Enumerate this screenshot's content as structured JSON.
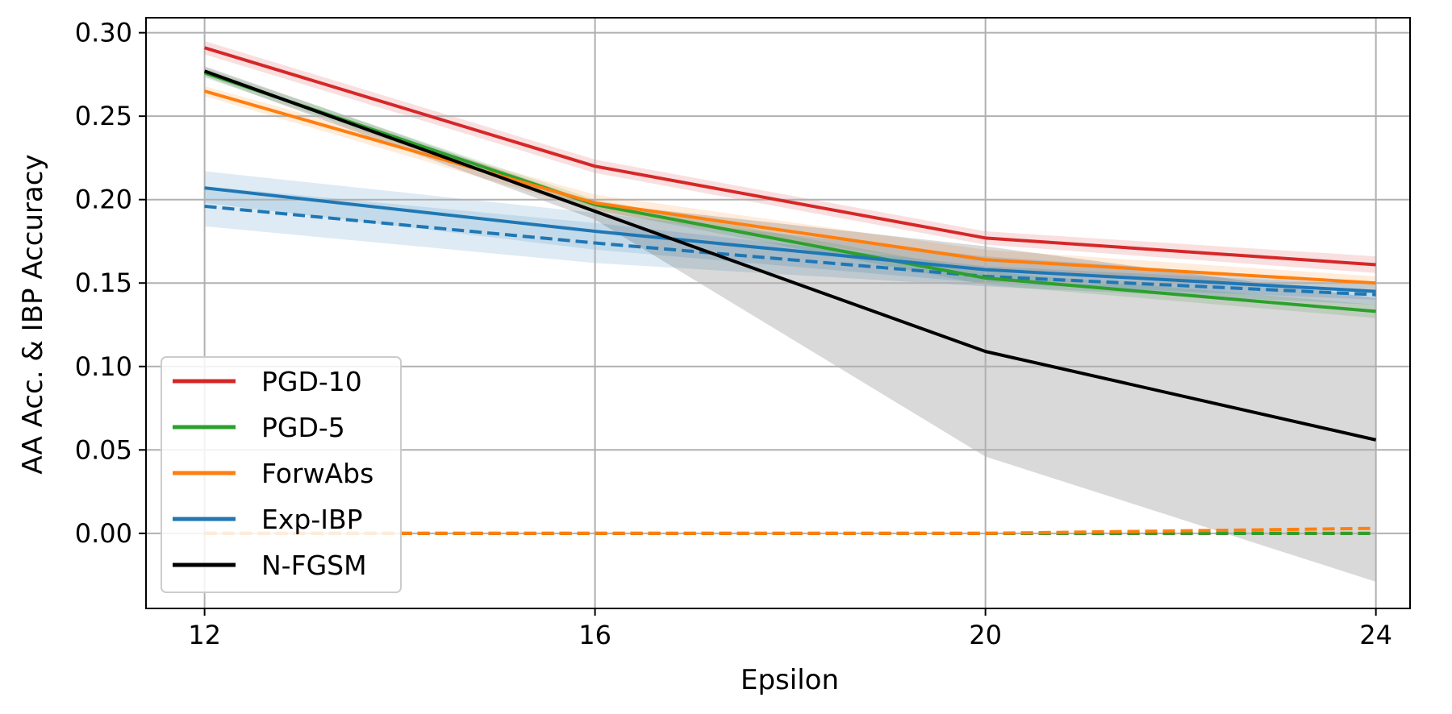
{
  "chart_data": {
    "type": "line",
    "title": "",
    "xlabel": "Epsilon",
    "ylabel": "AA Acc. & IBP Accuracy",
    "x": [
      12,
      16,
      20,
      24
    ],
    "xticks": [
      12,
      16,
      20,
      24
    ],
    "xlim": [
      11.4,
      24.35
    ],
    "ylim": [
      -0.045,
      0.309
    ],
    "yticks": [
      0.0,
      0.05,
      0.1,
      0.15,
      0.2,
      0.25,
      0.3
    ],
    "ytick_labels": [
      "0.00",
      "0.05",
      "0.10",
      "0.15",
      "0.20",
      "0.25",
      "0.30"
    ],
    "grid": true,
    "legend_position": "lower-left",
    "series": [
      {
        "name": "PGD-10",
        "color": "#d62728",
        "aa": [
          0.291,
          0.22,
          0.177,
          0.161
        ],
        "aa_lower": [
          0.287,
          0.216,
          0.173,
          0.156
        ],
        "aa_upper": [
          0.295,
          0.224,
          0.181,
          0.166
        ],
        "ibp": [
          0.0,
          0.0,
          0.0,
          0.0
        ]
      },
      {
        "name": "PGD-5",
        "color": "#2ca02c",
        "aa": [
          0.276,
          0.197,
          0.153,
          0.133
        ],
        "aa_lower": [
          0.273,
          0.194,
          0.149,
          0.129
        ],
        "aa_upper": [
          0.279,
          0.2,
          0.157,
          0.137
        ],
        "ibp": [
          0.0,
          0.0,
          0.0,
          0.0
        ]
      },
      {
        "name": "ForwAbs",
        "color": "#ff7f0e",
        "aa": [
          0.265,
          0.198,
          0.164,
          0.15
        ],
        "aa_lower": [
          0.262,
          0.193,
          0.158,
          0.146
        ],
        "aa_upper": [
          0.268,
          0.203,
          0.17,
          0.154
        ],
        "ibp": [
          0.0,
          0.0,
          0.0,
          0.003
        ]
      },
      {
        "name": "Exp-IBP",
        "color": "#1f77b4",
        "aa": [
          0.207,
          0.181,
          0.158,
          0.145
        ],
        "aa_lower": [
          0.198,
          0.17,
          0.15,
          0.14
        ],
        "aa_upper": [
          0.217,
          0.192,
          0.166,
          0.15
        ],
        "ibp": [
          0.196,
          0.174,
          0.154,
          0.143
        ],
        "ibp_lower": [
          0.184,
          0.162,
          0.148,
          0.137
        ],
        "ibp_upper": [
          0.208,
          0.186,
          0.16,
          0.149
        ]
      },
      {
        "name": "N-FGSM",
        "color": "#000000",
        "aa": [
          0.277,
          0.193,
          0.109,
          0.056
        ],
        "aa_lower": [
          0.274,
          0.188,
          0.046,
          -0.029
        ],
        "aa_upper": [
          0.28,
          0.198,
          0.172,
          0.141
        ]
      }
    ]
  }
}
